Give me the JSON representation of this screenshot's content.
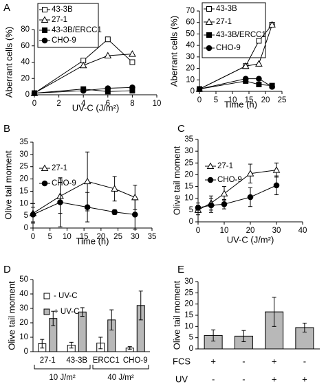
{
  "chart_data": [
    {
      "type": "line",
      "panel": "A",
      "x": [
        0,
        4,
        6,
        8
      ],
      "xlim": [
        0,
        10
      ],
      "xticks": [
        0,
        2,
        4,
        6,
        8,
        10
      ],
      "ylim": [
        0,
        80
      ],
      "yticks": [
        0,
        20,
        40,
        60,
        80
      ],
      "xlabel": "UV-C (J/m²)",
      "ylabel": "Aberrant cells (%)",
      "legend_box": true,
      "series": [
        {
          "name": "43-3B",
          "color": "#000000",
          "marker": "square",
          "filled": false,
          "values": [
            2,
            42,
            68,
            40
          ]
        },
        {
          "name": "27-1",
          "color": "#000000",
          "marker": "triangle",
          "filled": false,
          "values": [
            2,
            36,
            48,
            50
          ]
        },
        {
          "name": "43-3B/ERCC1",
          "color": "#000000",
          "marker": "square",
          "filled": true,
          "values": [
            2,
            7,
            4,
            5
          ]
        },
        {
          "name": "CHO-9",
          "color": "#000000",
          "marker": "circle",
          "filled": true,
          "values": [
            2,
            5,
            8,
            9
          ]
        }
      ]
    },
    {
      "type": "line",
      "x": [
        0,
        14,
        18,
        22
      ],
      "xlim": [
        0,
        25
      ],
      "xticks": [
        0,
        5,
        10,
        15,
        20,
        25
      ],
      "ylim": [
        0,
        70
      ],
      "yticks": [
        0,
        10,
        20,
        30,
        40,
        50,
        60,
        70
      ],
      "xlabel": "Time (h)",
      "ylabel": "Aberrant cells (%)",
      "legend_box": true,
      "series": [
        {
          "name": "43-3B",
          "color": "#000000",
          "marker": "square",
          "filled": false,
          "values": [
            2,
            22,
            44,
            58
          ]
        },
        {
          "name": "27-1",
          "color": "#000000",
          "marker": "triangle",
          "filled": false,
          "values": [
            2,
            22,
            24,
            58
          ]
        },
        {
          "name": "43-3B/ERCC1",
          "color": "#000000",
          "marker": "square",
          "filled": true,
          "values": [
            2,
            9,
            6,
            5
          ]
        },
        {
          "name": "CHO-9",
          "color": "#000000",
          "marker": "circle",
          "filled": true,
          "values": [
            2,
            11,
            11,
            4
          ]
        }
      ]
    },
    {
      "type": "line",
      "panel": "B",
      "x": [
        0,
        8,
        16,
        24,
        30
      ],
      "xlim": [
        0,
        35
      ],
      "xticks": [
        0,
        5,
        10,
        15,
        20,
        25,
        30,
        35
      ],
      "ylim": [
        0,
        35
      ],
      "yticks": [
        0,
        5,
        10,
        15,
        20,
        25,
        30,
        35
      ],
      "xlabel": "Time (h)",
      "ylabel": "Olive tail moment",
      "legend_box": false,
      "series": [
        {
          "name": "27-1",
          "color": "#000000",
          "marker": "triangle",
          "filled": false,
          "values": [
            6,
            13,
            19,
            16,
            12.5
          ],
          "errors": [
            4,
            7,
            12,
            5,
            5
          ]
        },
        {
          "name": "CHO-9",
          "color": "#000000",
          "marker": "circle",
          "filled": true,
          "values": [
            5.5,
            10.5,
            8.5,
            6.5,
            5.5
          ],
          "errors": [
            3,
            10,
            6,
            1,
            6
          ]
        }
      ]
    },
    {
      "type": "line",
      "panel": "C",
      "x": [
        0,
        5,
        10,
        20,
        30
      ],
      "xlim": [
        0,
        40
      ],
      "xticks": [
        0,
        10,
        20,
        30,
        40
      ],
      "ylim": [
        0,
        35
      ],
      "yticks": [
        0,
        5,
        10,
        15,
        20,
        25,
        30,
        35
      ],
      "xlabel": "UV-C (J/m²)",
      "ylabel": "Olive tail moment",
      "legend_box": false,
      "series": [
        {
          "name": "27-1",
          "color": "#000000",
          "marker": "triangle",
          "filled": false,
          "values": [
            5,
            8,
            12,
            20.5,
            22
          ],
          "errors": [
            2,
            3,
            3,
            4,
            3
          ]
        },
        {
          "name": "CHO-9",
          "color": "#000000",
          "marker": "circle",
          "filled": true,
          "values": [
            6,
            7,
            7.5,
            10.5,
            15.5
          ],
          "errors": [
            2,
            3,
            2,
            4,
            4
          ]
        }
      ]
    },
    {
      "type": "bar",
      "panel": "D",
      "categories": [
        "27-1",
        "43-3B",
        "ERCC1",
        "CHO-9"
      ],
      "ylim": [
        0,
        50
      ],
      "yticks": [
        0,
        10,
        20,
        30,
        40,
        50
      ],
      "ylabel": "Olive tail moment",
      "series": [
        {
          "name": "- UV-C",
          "color": "#ffffff",
          "values": [
            5.5,
            4.5,
            6,
            2.5
          ],
          "errors": [
            3,
            2,
            4,
            1
          ]
        },
        {
          "name": "+ UV-C",
          "color": "#b8b8b8",
          "values": [
            23,
            27.5,
            22,
            32
          ],
          "errors": [
            5,
            3,
            7,
            10
          ]
        }
      ],
      "groups": [
        {
          "label": "10 J/m²",
          "members": [
            "27-1",
            "43-3B"
          ]
        },
        {
          "label": "40 J/m²",
          "members": [
            "ERCC1",
            "CHO-9"
          ]
        }
      ]
    },
    {
      "type": "bar",
      "panel": "E",
      "categories": [
        null,
        null,
        null,
        null
      ],
      "ylim": [
        0,
        30
      ],
      "yticks": [
        0,
        5,
        10,
        15,
        20,
        25,
        30
      ],
      "ylabel": "Olive tail moment",
      "series": [
        {
          "color": "#b8b8b8",
          "values": [
            6,
            5.7,
            16.5,
            9.5
          ],
          "errors": [
            2.5,
            2.5,
            6.5,
            2
          ]
        }
      ],
      "row_labels": [
        {
          "name": "FCS",
          "values": [
            "+",
            "-",
            "+",
            "-"
          ]
        },
        {
          "name": "UV",
          "values": [
            "-",
            "-",
            "+",
            "+"
          ]
        }
      ]
    }
  ]
}
